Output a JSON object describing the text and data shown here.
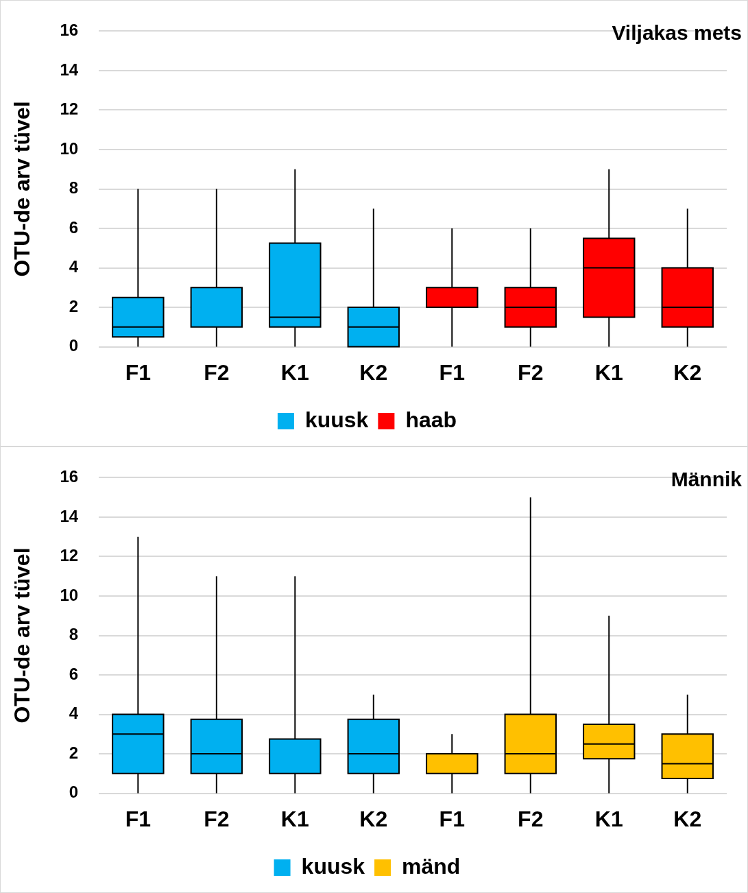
{
  "chart_data": [
    {
      "type": "box",
      "title": "Viljakas mets",
      "ylabel": "OTU-de arv tüvel",
      "categories": [
        "F1",
        "F2",
        "K1",
        "K2",
        "F1",
        "F2",
        "K1",
        "K2"
      ],
      "ylim": [
        0,
        16
      ],
      "yticks": [
        0,
        2,
        4,
        6,
        8,
        10,
        12,
        14,
        16
      ],
      "grid": "y",
      "legend": "bottom",
      "series": [
        {
          "name": "kuusk",
          "color": "#00b0f0",
          "boxes": [
            {
              "low": 0,
              "q1": 0.5,
              "median": 1,
              "q3": 2.5,
              "high": 8
            },
            {
              "low": 0,
              "q1": 1,
              "median": 1,
              "q3": 3,
              "high": 8
            },
            {
              "low": 0,
              "q1": 1,
              "median": 1.5,
              "q3": 5.25,
              "high": 9
            },
            {
              "low": 0,
              "q1": 0,
              "median": 1,
              "q3": 2,
              "high": 7
            },
            null,
            null,
            null,
            null
          ]
        },
        {
          "name": "haab",
          "color": "#ff0000",
          "boxes": [
            null,
            null,
            null,
            null,
            {
              "low": 0,
              "q1": 2,
              "median": 2,
              "q3": 3,
              "high": 6
            },
            {
              "low": 0,
              "q1": 1,
              "median": 2,
              "q3": 3,
              "high": 6
            },
            {
              "low": 0,
              "q1": 1.5,
              "median": 4,
              "q3": 5.5,
              "high": 9
            },
            {
              "low": 0,
              "q1": 1,
              "median": 2,
              "q3": 4,
              "high": 7
            }
          ]
        }
      ]
    },
    {
      "type": "box",
      "title": "Männik",
      "ylabel": "OTU-de arv tüvel",
      "categories": [
        "F1",
        "F2",
        "K1",
        "K2",
        "F1",
        "F2",
        "K1",
        "K2"
      ],
      "ylim": [
        0,
        16
      ],
      "yticks": [
        0,
        2,
        4,
        6,
        8,
        10,
        12,
        14,
        16
      ],
      "grid": "y",
      "legend": "bottom",
      "series": [
        {
          "name": "kuusk",
          "color": "#00b0f0",
          "boxes": [
            {
              "low": 0,
              "q1": 1,
              "median": 3,
              "q3": 4,
              "high": 13
            },
            {
              "low": 0,
              "q1": 1,
              "median": 2,
              "q3": 3.75,
              "high": 11
            },
            {
              "low": 0,
              "q1": 1,
              "median": 1,
              "q3": 2.75,
              "high": 11
            },
            {
              "low": 0,
              "q1": 1,
              "median": 2,
              "q3": 3.75,
              "high": 5
            },
            null,
            null,
            null,
            null
          ]
        },
        {
          "name": "mänd",
          "color": "#ffc000",
          "boxes": [
            null,
            null,
            null,
            null,
            {
              "low": 0,
              "q1": 1,
              "median": 1,
              "q3": 2,
              "high": 3
            },
            {
              "low": 0,
              "q1": 1,
              "median": 2,
              "q3": 4,
              "high": 15
            },
            {
              "low": 0,
              "q1": 1.75,
              "median": 2.5,
              "q3": 3.5,
              "high": 9
            },
            {
              "low": 0,
              "q1": 0.75,
              "median": 1.5,
              "q3": 3,
              "high": 5
            }
          ]
        }
      ]
    }
  ]
}
